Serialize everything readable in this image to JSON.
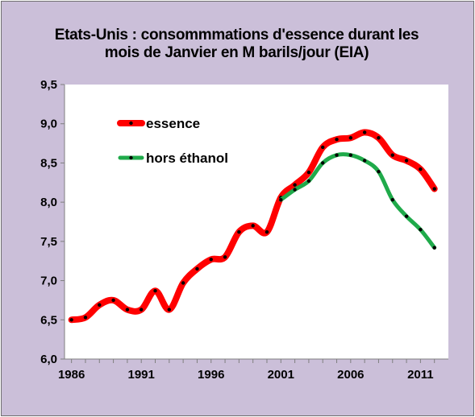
{
  "chart_data": {
    "type": "line",
    "title_line1": "Etats-Unis : consommmations d'essence durant les",
    "title_line2": "mois de Janvier en M barils/jour (EIA)",
    "xlabel": "",
    "ylabel": "",
    "x_ticks": [
      "1986",
      "1991",
      "1996",
      "2001",
      "2006",
      "2011"
    ],
    "y_ticks": [
      "6,0",
      "6,5",
      "7,0",
      "7,5",
      "8,0",
      "8,5",
      "9,0",
      "9,5"
    ],
    "xlim": [
      1985.5,
      2013
    ],
    "ylim": [
      6.0,
      9.5
    ],
    "grid": false,
    "legend_position": "top-left",
    "series": [
      {
        "name": "essence",
        "color": "#ff0000",
        "x": [
          1986,
          1987,
          1988,
          1989,
          1990,
          1991,
          1992,
          1993,
          1994,
          1995,
          1996,
          1997,
          1998,
          1999,
          2000,
          2001,
          2002,
          2003,
          2004,
          2005,
          2006,
          2007,
          2008,
          2009,
          2010,
          2011,
          2012
        ],
        "values": [
          6.5,
          6.53,
          6.69,
          6.75,
          6.63,
          6.63,
          6.87,
          6.63,
          6.97,
          7.15,
          7.27,
          7.3,
          7.62,
          7.7,
          7.62,
          8.06,
          8.22,
          8.38,
          8.7,
          8.8,
          8.82,
          8.89,
          8.82,
          8.6,
          8.53,
          8.42,
          8.17
        ]
      },
      {
        "name": "hors éthanol",
        "color": "#1faa4a",
        "x": [
          2001,
          2002,
          2003,
          2004,
          2005,
          2006,
          2007,
          2008,
          2009,
          2010,
          2011,
          2012
        ],
        "values": [
          8.03,
          8.16,
          8.27,
          8.5,
          8.6,
          8.6,
          8.53,
          8.39,
          8.03,
          7.82,
          7.65,
          7.42
        ]
      }
    ]
  }
}
